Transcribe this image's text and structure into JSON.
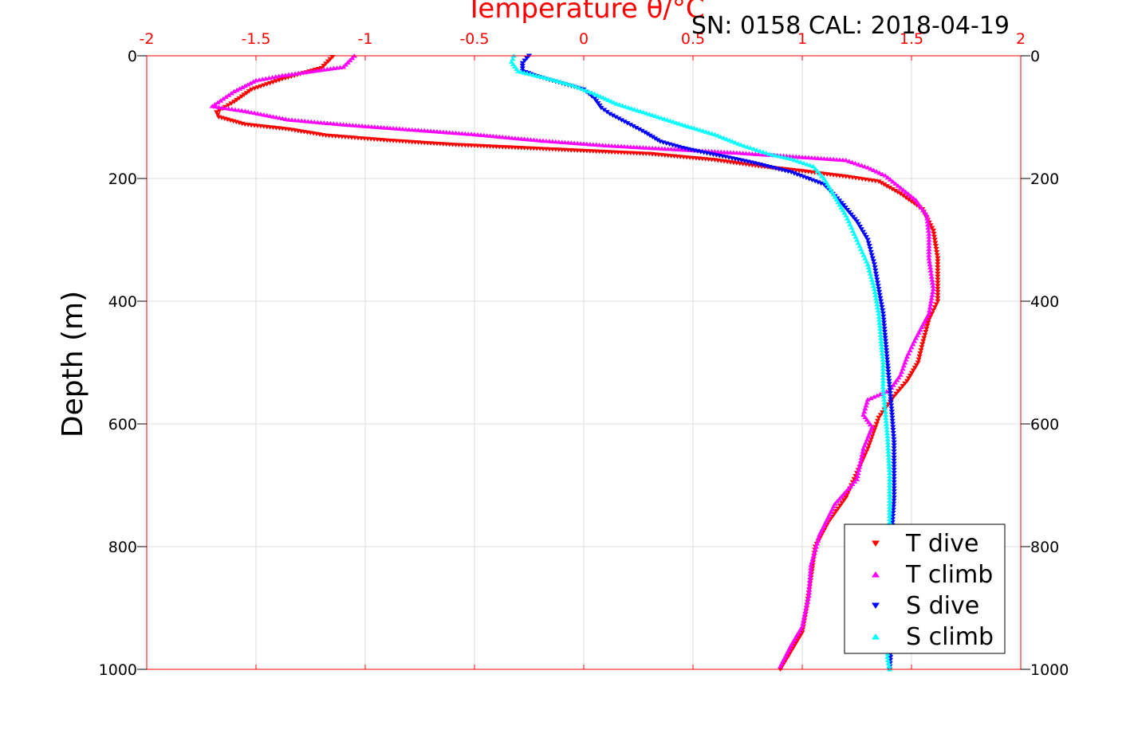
{
  "chart_data": {
    "type": "scatter",
    "title": "",
    "xlabel": "Temperature θ/°C",
    "ylabel": "Depth (m)",
    "annotation": "SN: 0158  CAL: 2018-04-19",
    "xlim": [
      -2,
      2
    ],
    "ylim": [
      0,
      1000
    ],
    "y_reversed": true,
    "grid": true,
    "x_tick_labels": [
      "-2",
      "-1.5",
      "-1",
      "-0.5",
      "0",
      "0.5",
      "1",
      "1.5",
      "2"
    ],
    "x_ticks": [
      -2,
      -1.5,
      -1,
      -0.5,
      0,
      0.5,
      1,
      1.5,
      2
    ],
    "y_tick_labels": [
      "0",
      "200",
      "400",
      "600",
      "800",
      "1000"
    ],
    "y_ticks": [
      0,
      200,
      400,
      600,
      800,
      1000
    ],
    "legend_position": "bottom-right",
    "colors": {
      "axis": "#ff0000",
      "grid": "#dddddd",
      "t_dive": "#ff0000",
      "t_climb": "#ff00ff",
      "s_dive": "#0000ff",
      "s_climb": "#00ffff"
    },
    "series": [
      {
        "name": "T dive",
        "marker": "triangle-down",
        "color": "#ff0000",
        "points": [
          [
            -1.15,
            2
          ],
          [
            -1.2,
            20
          ],
          [
            -1.38,
            38
          ],
          [
            -1.52,
            55
          ],
          [
            -1.6,
            75
          ],
          [
            -1.68,
            92
          ],
          [
            -1.67,
            100
          ],
          [
            -1.55,
            112
          ],
          [
            -1.35,
            120
          ],
          [
            -1.18,
            130
          ],
          [
            -0.9,
            138
          ],
          [
            -0.6,
            145
          ],
          [
            -0.3,
            150
          ],
          [
            0.0,
            155
          ],
          [
            0.3,
            160
          ],
          [
            0.6,
            170
          ],
          [
            0.8,
            180
          ],
          [
            1.0,
            188
          ],
          [
            1.2,
            197
          ],
          [
            1.35,
            205
          ],
          [
            1.45,
            225
          ],
          [
            1.55,
            250
          ],
          [
            1.6,
            285
          ],
          [
            1.62,
            330
          ],
          [
            1.62,
            380
          ],
          [
            1.62,
            400
          ],
          [
            1.58,
            430
          ],
          [
            1.55,
            470
          ],
          [
            1.53,
            500
          ],
          [
            1.48,
            530
          ],
          [
            1.42,
            555
          ],
          [
            1.35,
            590
          ],
          [
            1.3,
            640
          ],
          [
            1.25,
            680
          ],
          [
            1.2,
            720
          ],
          [
            1.12,
            760
          ],
          [
            1.06,
            800
          ],
          [
            1.04,
            850
          ],
          [
            1.02,
            900
          ],
          [
            1.0,
            940
          ],
          [
            0.95,
            970
          ],
          [
            0.9,
            1000
          ]
        ]
      },
      {
        "name": "T climb",
        "marker": "triangle-up",
        "color": "#ff00ff",
        "points": [
          [
            -1.05,
            0
          ],
          [
            -1.1,
            18
          ],
          [
            -1.38,
            32
          ],
          [
            -1.5,
            40
          ],
          [
            -1.6,
            58
          ],
          [
            -1.7,
            82
          ],
          [
            -1.55,
            90
          ],
          [
            -1.35,
            104
          ],
          [
            -1.1,
            112
          ],
          [
            -0.8,
            120
          ],
          [
            -0.5,
            128
          ],
          [
            -0.2,
            138
          ],
          [
            0.1,
            146
          ],
          [
            0.4,
            152
          ],
          [
            0.7,
            158
          ],
          [
            1.0,
            165
          ],
          [
            1.2,
            170
          ],
          [
            1.3,
            182
          ],
          [
            1.38,
            195
          ],
          [
            1.45,
            215
          ],
          [
            1.52,
            235
          ],
          [
            1.57,
            260
          ],
          [
            1.58,
            290
          ],
          [
            1.58,
            330
          ],
          [
            1.6,
            380
          ],
          [
            1.58,
            420
          ],
          [
            1.52,
            460
          ],
          [
            1.48,
            490
          ],
          [
            1.45,
            520
          ],
          [
            1.4,
            545
          ],
          [
            1.3,
            560
          ],
          [
            1.28,
            585
          ],
          [
            1.32,
            605
          ],
          [
            1.28,
            640
          ],
          [
            1.25,
            690
          ],
          [
            1.15,
            730
          ],
          [
            1.08,
            780
          ],
          [
            1.04,
            830
          ],
          [
            1.03,
            880
          ],
          [
            1.0,
            930
          ],
          [
            0.95,
            960
          ],
          [
            0.9,
            995
          ]
        ]
      },
      {
        "name": "S dive",
        "marker": "triangle-down",
        "color": "#0000ff",
        "points": [
          [
            -0.25,
            0
          ],
          [
            -0.28,
            12
          ],
          [
            -0.28,
            25
          ],
          [
            -0.2,
            35
          ],
          [
            -0.1,
            45
          ],
          [
            0.0,
            55
          ],
          [
            0.05,
            70
          ],
          [
            0.08,
            85
          ],
          [
            0.12,
            95
          ],
          [
            0.2,
            110
          ],
          [
            0.28,
            125
          ],
          [
            0.35,
            140
          ],
          [
            0.45,
            150
          ],
          [
            0.55,
            158
          ],
          [
            0.65,
            165
          ],
          [
            0.78,
            175
          ],
          [
            0.95,
            190
          ],
          [
            1.1,
            210
          ],
          [
            1.18,
            240
          ],
          [
            1.25,
            270
          ],
          [
            1.3,
            300
          ],
          [
            1.33,
            340
          ],
          [
            1.35,
            380
          ],
          [
            1.37,
            420
          ],
          [
            1.38,
            460
          ],
          [
            1.39,
            500
          ],
          [
            1.4,
            540
          ],
          [
            1.41,
            580
          ],
          [
            1.42,
            630
          ],
          [
            1.42,
            680
          ],
          [
            1.42,
            720
          ],
          [
            1.41,
            780
          ],
          [
            1.41,
            840
          ],
          [
            1.41,
            900
          ],
          [
            1.41,
            950
          ],
          [
            1.4,
            1000
          ]
        ]
      },
      {
        "name": "S climb",
        "marker": "triangle-up",
        "color": "#00ffff",
        "points": [
          [
            -0.32,
            0
          ],
          [
            -0.33,
            10
          ],
          [
            -0.3,
            25
          ],
          [
            -0.15,
            38
          ],
          [
            -0.05,
            48
          ],
          [
            0.05,
            62
          ],
          [
            0.15,
            78
          ],
          [
            0.3,
            95
          ],
          [
            0.45,
            112
          ],
          [
            0.6,
            128
          ],
          [
            0.72,
            145
          ],
          [
            0.85,
            160
          ],
          [
            0.95,
            168
          ],
          [
            1.05,
            180
          ],
          [
            1.1,
            200
          ],
          [
            1.15,
            230
          ],
          [
            1.2,
            260
          ],
          [
            1.25,
            300
          ],
          [
            1.3,
            340
          ],
          [
            1.33,
            380
          ],
          [
            1.35,
            420
          ],
          [
            1.36,
            460
          ],
          [
            1.37,
            500
          ],
          [
            1.37,
            540
          ],
          [
            1.38,
            580
          ],
          [
            1.39,
            620
          ],
          [
            1.4,
            680
          ],
          [
            1.4,
            740
          ],
          [
            1.4,
            800
          ],
          [
            1.4,
            860
          ],
          [
            1.4,
            920
          ],
          [
            1.39,
            980
          ],
          [
            1.4,
            1000
          ]
        ]
      }
    ]
  }
}
